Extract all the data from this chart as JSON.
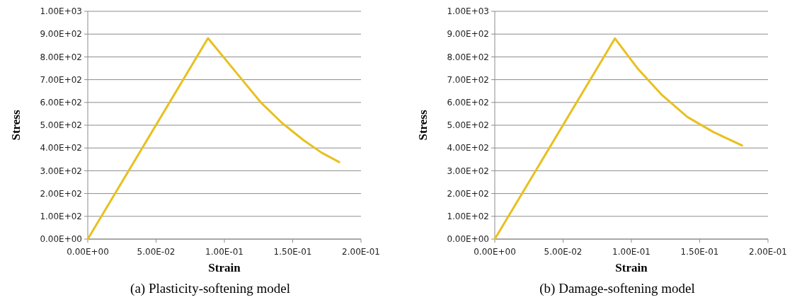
{
  "chart_data": [
    {
      "type": "line",
      "title": "(a) Plasticity-softening model",
      "xlabel": "Strain",
      "ylabel": "Stress",
      "xlim": [
        0,
        0.2
      ],
      "ylim": [
        0,
        1000
      ],
      "xticks": [
        {
          "value": 0,
          "label": "0.00E+00"
        },
        {
          "value": 0.05,
          "label": "5.00E-02"
        },
        {
          "value": 0.1,
          "label": "1.00E-01"
        },
        {
          "value": 0.15,
          "label": "1.50E-01"
        },
        {
          "value": 0.2,
          "label": "2.00E-01"
        }
      ],
      "yticks": [
        {
          "value": 0,
          "label": "0.00E+00"
        },
        {
          "value": 100,
          "label": "1.00E+02"
        },
        {
          "value": 200,
          "label": "2.00E+02"
        },
        {
          "value": 300,
          "label": "3.00E+02"
        },
        {
          "value": 400,
          "label": "4.00E+02"
        },
        {
          "value": 500,
          "label": "5.00E+02"
        },
        {
          "value": 600,
          "label": "6.00E+02"
        },
        {
          "value": 700,
          "label": "7.00E+02"
        },
        {
          "value": 800,
          "label": "8.00E+02"
        },
        {
          "value": 900,
          "label": "9.00E+02"
        },
        {
          "value": 1000,
          "label": "1.00E+03"
        }
      ],
      "grid": "y",
      "marker": "none",
      "series": [
        {
          "color": "#e8c020",
          "x": [
            0,
            0.088,
            0.112,
            0.127,
            0.142,
            0.158,
            0.171,
            0.184
          ],
          "values": [
            0,
            882,
            707,
            598,
            511,
            434,
            380,
            338
          ]
        }
      ]
    },
    {
      "type": "line",
      "title": "(b) Damage-softening model",
      "xlabel": "Strain",
      "ylabel": "Stress",
      "xlim": [
        0,
        0.2
      ],
      "ylim": [
        0,
        1000
      ],
      "xticks": [
        {
          "value": 0,
          "label": "0.00E+00"
        },
        {
          "value": 0.05,
          "label": "5.00E-02"
        },
        {
          "value": 0.1,
          "label": "1.00E-01"
        },
        {
          "value": 0.15,
          "label": "1.50E-01"
        },
        {
          "value": 0.2,
          "label": "2.00E-01"
        }
      ],
      "yticks": [
        {
          "value": 0,
          "label": "0.00E+00"
        },
        {
          "value": 100,
          "label": "1.00E+02"
        },
        {
          "value": 200,
          "label": "2.00E+02"
        },
        {
          "value": 300,
          "label": "3.00E+02"
        },
        {
          "value": 400,
          "label": "4.00E+02"
        },
        {
          "value": 500,
          "label": "5.00E+02"
        },
        {
          "value": 600,
          "label": "6.00E+02"
        },
        {
          "value": 700,
          "label": "7.00E+02"
        },
        {
          "value": 800,
          "label": "8.00E+02"
        },
        {
          "value": 900,
          "label": "9.00E+02"
        },
        {
          "value": 1000,
          "label": "1.00E+03"
        }
      ],
      "grid": "y",
      "marker": "none",
      "series": [
        {
          "color": "#e8c020",
          "x": [
            0,
            0.088,
            0.105,
            0.122,
            0.141,
            0.16,
            0.181
          ],
          "values": [
            0,
            881,
            746,
            635,
            536,
            470,
            411
          ]
        }
      ]
    }
  ]
}
